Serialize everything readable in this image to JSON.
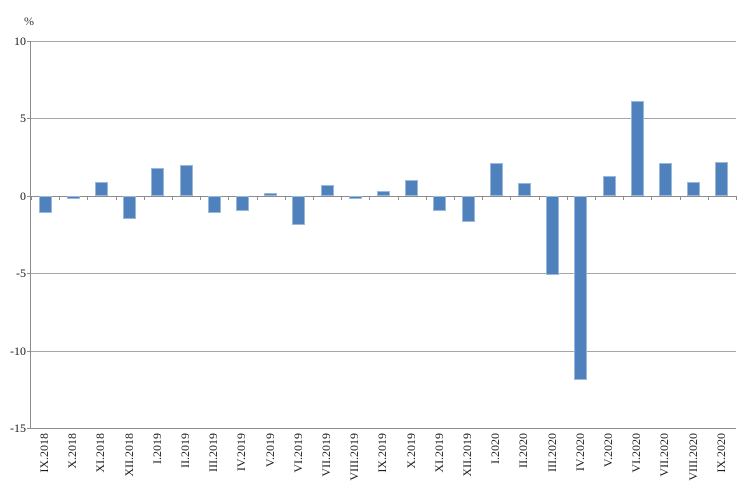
{
  "chart_data": {
    "type": "bar",
    "title": "",
    "xlabel": "",
    "ylabel": "%",
    "ylim": [
      -15,
      10
    ],
    "y_tick_interval": 5,
    "y_ticks": [
      10,
      5,
      0,
      -5,
      -10,
      -15
    ],
    "grid": true,
    "legend_position": "none",
    "bar_color": "#4f81bd",
    "bar_border_color": "#9ab8dc",
    "gridline_color": "#a6a6a6",
    "axis_color": "#8c8c8c",
    "categories": [
      "IX.2018",
      "X.2018",
      "XI.2018",
      "XII.2018",
      "I.2019",
      "II.2019",
      "III.2019",
      "IV.2019",
      "V.2019",
      "VI.2019",
      "VII.2019",
      "VIII.2019",
      "IX.2019",
      "X.2019",
      "XI.2019",
      "XII.2019",
      "I.2020",
      "II.2020",
      "III.2020",
      "IV.2020",
      "V.2020",
      "VI.2020",
      "VII.2020",
      "VIII.2020",
      "IX.2020"
    ],
    "values": [
      -1.1,
      -0.2,
      0.9,
      -1.5,
      1.8,
      2.0,
      -1.1,
      -1.0,
      0.2,
      -1.9,
      0.7,
      -0.2,
      0.3,
      1.0,
      -1.0,
      -1.7,
      2.1,
      0.8,
      -5.1,
      -11.9,
      1.3,
      6.1,
      2.1,
      0.9,
      2.2
    ]
  }
}
